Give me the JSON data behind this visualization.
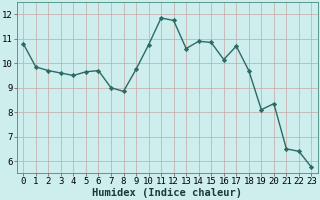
{
  "x": [
    0,
    1,
    2,
    3,
    4,
    5,
    6,
    7,
    8,
    9,
    10,
    11,
    12,
    13,
    14,
    15,
    16,
    17,
    18,
    19,
    20,
    21,
    22,
    23
  ],
  "y": [
    10.8,
    9.85,
    9.7,
    9.6,
    9.5,
    9.65,
    9.7,
    9.0,
    8.85,
    9.75,
    10.75,
    11.85,
    11.75,
    10.6,
    10.9,
    10.85,
    10.15,
    10.7,
    9.7,
    8.1,
    8.35,
    6.5,
    6.4,
    5.75
  ],
  "line_color": "#2a6b65",
  "marker": "D",
  "marker_size": 2.2,
  "bg_color": "#cdeeed",
  "grid_color_v": "#c8a8a8",
  "grid_color_h": "#c8a8a8",
  "xlabel": "Humidex (Indice chaleur)",
  "xlim": [
    -0.5,
    23.5
  ],
  "ylim": [
    5.5,
    12.5
  ],
  "yticks": [
    6,
    7,
    8,
    9,
    10,
    11,
    12
  ],
  "xticks": [
    0,
    1,
    2,
    3,
    4,
    5,
    6,
    7,
    8,
    9,
    10,
    11,
    12,
    13,
    14,
    15,
    16,
    17,
    18,
    19,
    20,
    21,
    22,
    23
  ],
  "xlabel_fontsize": 7.5,
  "tick_fontsize": 6.5,
  "line_width": 1.0,
  "figwidth": 3.2,
  "figheight": 2.0,
  "dpi": 100
}
